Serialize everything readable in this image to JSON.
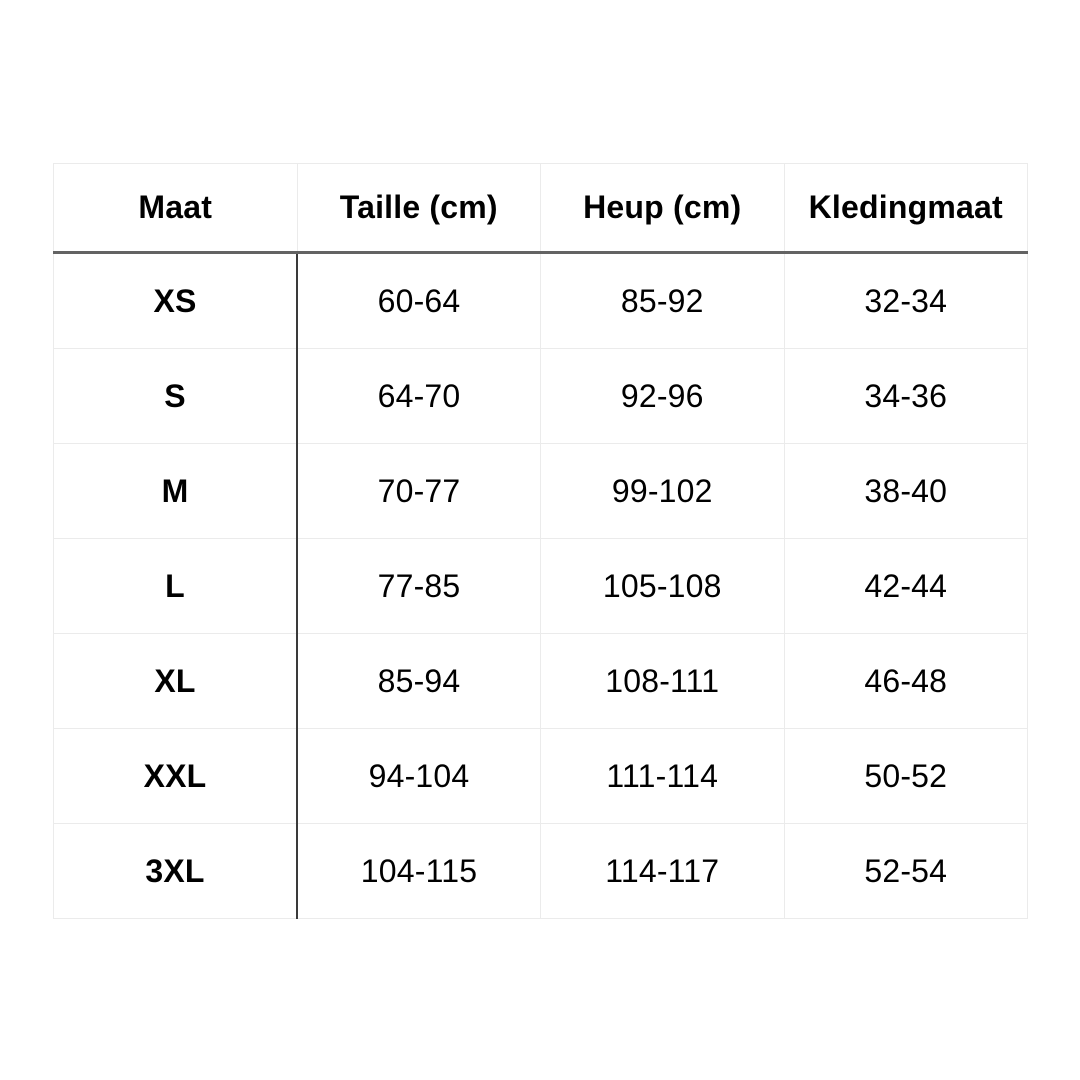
{
  "page": {
    "background_color": "#ffffff",
    "text_color": "#000000"
  },
  "chart_data": {
    "type": "table",
    "title": "",
    "columns": [
      "Maat",
      "Taille (cm)",
      "Heup (cm)",
      "Kledingmaat"
    ],
    "rows": [
      [
        "XS",
        "60-64",
        "85-92",
        "32-34"
      ],
      [
        "S",
        "64-70",
        "92-96",
        "34-36"
      ],
      [
        "M",
        "70-77",
        "99-102",
        "38-40"
      ],
      [
        "L",
        "77-85",
        "105-108",
        "42-44"
      ],
      [
        "XL",
        "85-94",
        "108-111",
        "46-48"
      ],
      [
        "XXL",
        "94-104",
        "111-114",
        "50-52"
      ],
      [
        "3XL",
        "104-115",
        "114-117",
        "52-54"
      ]
    ],
    "layout": {
      "columns_equal_width": true,
      "header_bold": true,
      "first_column_bold": true,
      "grid": "light"
    },
    "colors": {
      "header_separator": "#636363",
      "size_column_separator": "#3a3a3a",
      "cell_border": "#ebebeb",
      "text": "#000000",
      "background": "#ffffff"
    }
  }
}
